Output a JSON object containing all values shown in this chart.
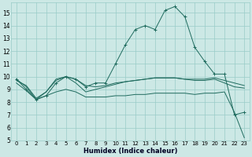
{
  "xlabel": "Humidex (Indice chaleur)",
  "background_color": "#cce8e5",
  "grid_color": "#99ccc8",
  "line_color": "#1f6b5e",
  "xlim": [
    -0.5,
    23.5
  ],
  "ylim": [
    5,
    15.8
  ],
  "xticks": [
    0,
    1,
    2,
    3,
    4,
    5,
    6,
    7,
    8,
    9,
    10,
    11,
    12,
    13,
    14,
    15,
    16,
    17,
    18,
    19,
    20,
    21,
    22,
    23
  ],
  "yticks": [
    5,
    6,
    7,
    8,
    9,
    10,
    11,
    12,
    13,
    14,
    15
  ],
  "line1_x": [
    0,
    1,
    2,
    3,
    4,
    5,
    6,
    7,
    8,
    9,
    10,
    11,
    12,
    13,
    14,
    15,
    16,
    17,
    18,
    19,
    20,
    21,
    22,
    23
  ],
  "line1_y": [
    9.8,
    9.0,
    8.2,
    8.5,
    9.5,
    10.0,
    9.8,
    9.2,
    9.5,
    9.5,
    11.0,
    12.5,
    13.7,
    14.0,
    13.7,
    15.2,
    15.5,
    14.7,
    12.3,
    11.2,
    10.2,
    10.2,
    7.0,
    7.2
  ],
  "line1_marker_x": [
    0,
    1,
    2,
    3,
    4,
    5,
    6,
    7,
    8,
    10,
    11,
    12,
    13,
    14,
    15,
    16,
    17,
    18,
    19,
    20,
    21,
    22,
    23
  ],
  "line1_marker_y": [
    9.8,
    9.0,
    8.2,
    8.5,
    9.5,
    10.0,
    9.8,
    9.2,
    9.5,
    11.0,
    12.5,
    13.7,
    14.0,
    13.7,
    15.2,
    15.5,
    14.7,
    12.3,
    11.2,
    10.2,
    10.2,
    7.0,
    7.2
  ],
  "line2_x": [
    0,
    1,
    2,
    3,
    4,
    5,
    6,
    7,
    8,
    9,
    10,
    11,
    12,
    13,
    14,
    15,
    16,
    17,
    18,
    19,
    20,
    21,
    22,
    23
  ],
  "line2_y": [
    9.7,
    9.3,
    8.3,
    8.8,
    9.7,
    10.0,
    9.8,
    9.3,
    9.2,
    9.3,
    9.5,
    9.6,
    9.7,
    9.8,
    9.9,
    9.9,
    9.9,
    9.8,
    9.8,
    9.8,
    9.9,
    9.7,
    9.5,
    9.3
  ],
  "line3_x": [
    0,
    1,
    2,
    3,
    4,
    5,
    6,
    7,
    8,
    9,
    10,
    11,
    12,
    13,
    14,
    15,
    16,
    17,
    18,
    19,
    20,
    21,
    22,
    23
  ],
  "line3_y": [
    9.5,
    8.9,
    8.2,
    8.5,
    8.8,
    9.0,
    8.8,
    8.4,
    8.4,
    8.4,
    8.5,
    8.5,
    8.6,
    8.6,
    8.7,
    8.7,
    8.7,
    8.7,
    8.6,
    8.7,
    8.7,
    8.8,
    7.2,
    5.2
  ],
  "line4_x": [
    0,
    1,
    2,
    3,
    4,
    5,
    6,
    7,
    8,
    9,
    10,
    11,
    12,
    13,
    14,
    15,
    16,
    17,
    18,
    19,
    20,
    21,
    22,
    23
  ],
  "line4_y": [
    9.8,
    9.2,
    8.2,
    8.8,
    9.8,
    10.0,
    9.5,
    8.8,
    9.0,
    9.2,
    9.4,
    9.6,
    9.7,
    9.8,
    9.9,
    9.9,
    9.9,
    9.8,
    9.7,
    9.7,
    9.8,
    9.5,
    9.2,
    9.1
  ]
}
